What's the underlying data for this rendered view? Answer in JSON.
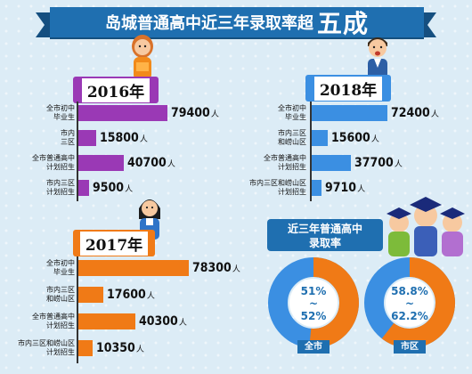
{
  "title": {
    "prefix": "岛城普通高中近三年录取率超",
    "highlight": "五成"
  },
  "colors": {
    "purple": "#9a39b5",
    "blue": "#3b8fe2",
    "orange": "#f07a16",
    "navy": "#1f6fb0"
  },
  "chart_data": [
    {
      "type": "bar",
      "year": "2016",
      "year_suffix": "年",
      "unit": "人",
      "categories": [
        "全市初中毕业生",
        "市内三区",
        "全市普通高中计划招生",
        "市内三区计划招生"
      ],
      "labels": [
        [
          "全市初中",
          "毕业生"
        ],
        [
          "市内",
          "三区"
        ],
        [
          "全市普通高中",
          "计划招生"
        ],
        [
          "市内三区",
          "计划招生"
        ]
      ],
      "values": [
        79400,
        15800,
        40700,
        9500
      ]
    },
    {
      "type": "bar",
      "year": "2018",
      "year_suffix": "年",
      "unit": "人",
      "categories": [
        "全市初中毕业生",
        "市内三区和崂山区",
        "全市普通高中计划招生",
        "市内三区和崂山区计划招生"
      ],
      "labels": [
        [
          "全市初中",
          "毕业生"
        ],
        [
          "市内三区",
          "和崂山区"
        ],
        [
          "全市普通高中",
          "计划招生"
        ],
        [
          "市内三区和崂山区",
          "计划招生"
        ]
      ],
      "values": [
        72400,
        15600,
        37700,
        9710
      ]
    },
    {
      "type": "bar",
      "year": "2017",
      "year_suffix": "年",
      "unit": "人",
      "categories": [
        "全市初中毕业生",
        "市内三区和崂山区",
        "全市普通高中计划招生",
        "市内三区和崂山区计划招生"
      ],
      "labels": [
        [
          "全市初中",
          "毕业生"
        ],
        [
          "市内三区",
          "和崂山区"
        ],
        [
          "全市普通高中",
          "计划招生"
        ],
        [
          "市内三区和崂山区",
          "计划招生"
        ]
      ],
      "values": [
        78300,
        17600,
        40300,
        10350
      ]
    },
    {
      "type": "pie",
      "title": "近三年普通高中录取率",
      "items": [
        {
          "name": "全市",
          "range_low": "51%",
          "range_high": "52%",
          "value": 51.5
        },
        {
          "name": "市区",
          "range_low": "58.8%",
          "range_high": "62.2%",
          "value": 60.5
        }
      ]
    }
  ],
  "rate_title_lines": [
    "近三年普通高中",
    "录取率"
  ],
  "range_sep": "~"
}
